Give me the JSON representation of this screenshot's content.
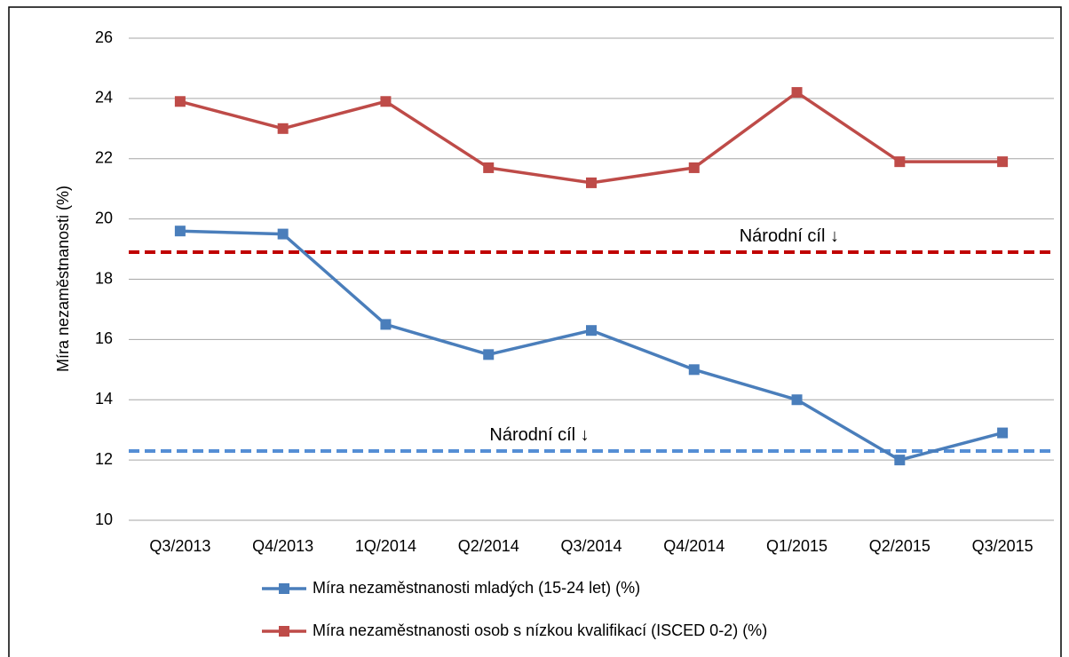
{
  "chart_data": {
    "type": "line",
    "y_label": "Míra nezaměstnanosti (%)",
    "categories": [
      "Q3/2013",
      "Q4/2013",
      "1Q/2014",
      "Q2/2014",
      "Q3/2014",
      "Q4/2014",
      "Q1/2015",
      "Q2/2015",
      "Q3/2015"
    ],
    "series": [
      {
        "name": "Míra nezaměstnanosti mladých (15-24 let) (%)",
        "color": "#4a7ebb",
        "values": [
          19.6,
          19.5,
          16.5,
          15.5,
          16.3,
          15.0,
          14.0,
          12.0,
          12.9
        ]
      },
      {
        "name": "Míra nezaměstnanosti osob s nízkou kvalifikací (ISCED 0-2) (%)",
        "color": "#be4b48",
        "values": [
          23.9,
          23.0,
          23.9,
          21.7,
          21.2,
          21.7,
          24.2,
          21.9,
          21.9
        ]
      }
    ],
    "reference_lines": [
      {
        "value": 18.9,
        "color": "#c00000",
        "label": "Národní cíl ↓"
      },
      {
        "value": 12.3,
        "color": "#558ed5",
        "label": "Národní cíl ↓"
      }
    ],
    "ylim": [
      10,
      26
    ],
    "yticks": [
      10,
      12,
      14,
      16,
      18,
      20,
      22,
      24,
      26
    ],
    "grid": true
  }
}
